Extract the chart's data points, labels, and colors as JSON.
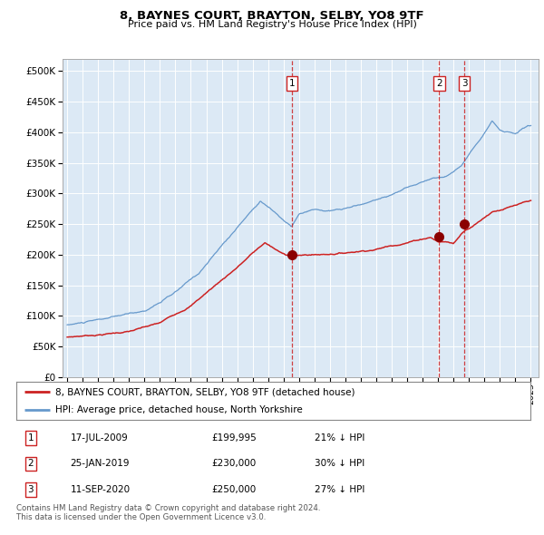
{
  "title": "8, BAYNES COURT, BRAYTON, SELBY, YO8 9TF",
  "subtitle": "Price paid vs. HM Land Registry's House Price Index (HPI)",
  "background_color": "#dce9f5",
  "plot_bg_color": "#dce9f5",
  "hpi_color": "#6699cc",
  "price_color": "#cc2222",
  "marker_color": "#8b0000",
  "vline_color": "#cc2222",
  "ylim": [
    0,
    520000
  ],
  "yticks": [
    0,
    50000,
    100000,
    150000,
    200000,
    250000,
    300000,
    350000,
    400000,
    450000,
    500000
  ],
  "xlim_start": 1994.7,
  "xlim_end": 2025.5,
  "transactions": [
    {
      "label": "1",
      "date_str": "17-JUL-2009",
      "date_num": 2009.54,
      "price": 199995
    },
    {
      "label": "2",
      "date_str": "25-JAN-2019",
      "date_num": 2019.07,
      "price": 230000
    },
    {
      "label": "3",
      "date_str": "11-SEP-2020",
      "date_num": 2020.7,
      "price": 250000
    }
  ],
  "legend_entries": [
    "8, BAYNES COURT, BRAYTON, SELBY, YO8 9TF (detached house)",
    "HPI: Average price, detached house, North Yorkshire"
  ],
  "table_rows": [
    {
      "num": "1",
      "date": "17-JUL-2009",
      "price": "£199,995",
      "pct": "21% ↓ HPI"
    },
    {
      "num": "2",
      "date": "25-JAN-2019",
      "price": "£230,000",
      "pct": "30% ↓ HPI"
    },
    {
      "num": "3",
      "date": "11-SEP-2020",
      "price": "£250,000",
      "pct": "27% ↓ HPI"
    }
  ],
  "footer": "Contains HM Land Registry data © Crown copyright and database right 2024.\nThis data is licensed under the Open Government Licence v3.0."
}
